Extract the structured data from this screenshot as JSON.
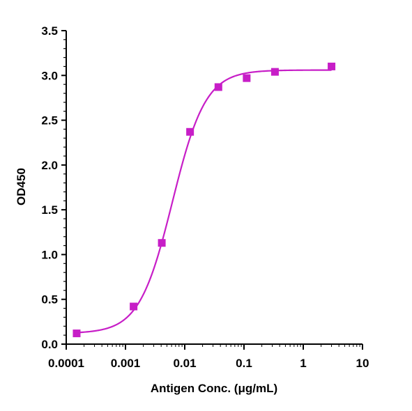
{
  "chart_data": {
    "type": "scatter",
    "title": "",
    "xlabel": "Antigen Conc. (μg/mL)",
    "ylabel": "OD450",
    "xscale": "log",
    "xlim": [
      0.0001,
      10
    ],
    "ylim": [
      0,
      3.5
    ],
    "xticks": [
      {
        "value": 0.0001,
        "label": "0.0001"
      },
      {
        "value": 0.001,
        "label": "0.001"
      },
      {
        "value": 0.01,
        "label": "0.01"
      },
      {
        "value": 0.1,
        "label": "0.1"
      },
      {
        "value": 1,
        "label": "1"
      },
      {
        "value": 10,
        "label": "10"
      }
    ],
    "yticks": [
      {
        "value": 0.0,
        "label": "0.0"
      },
      {
        "value": 0.5,
        "label": "0.5"
      },
      {
        "value": 1.0,
        "label": "1.0"
      },
      {
        "value": 1.5,
        "label": "1.5"
      },
      {
        "value": 2.0,
        "label": "2.0"
      },
      {
        "value": 2.5,
        "label": "2.5"
      },
      {
        "value": 3.0,
        "label": "3.0"
      },
      {
        "value": 3.5,
        "label": "3.5"
      }
    ],
    "grid": false,
    "legend": "none",
    "series": [
      {
        "marker": "square",
        "color": "#c71ec7",
        "points": [
          {
            "x": 0.00015,
            "y": 0.12
          },
          {
            "x": 0.00137,
            "y": 0.42
          },
          {
            "x": 0.0041,
            "y": 1.13
          },
          {
            "x": 0.0123,
            "y": 2.37
          },
          {
            "x": 0.037,
            "y": 2.87
          },
          {
            "x": 0.111,
            "y": 2.97
          },
          {
            "x": 0.333,
            "y": 3.04
          },
          {
            "x": 3.0,
            "y": 3.1
          }
        ],
        "fit": {
          "model": "4PL",
          "bottom": 0.12,
          "top": 3.06,
          "ec50": 0.0062,
          "hill": 1.55,
          "color": "#c71ec7"
        }
      }
    ]
  }
}
